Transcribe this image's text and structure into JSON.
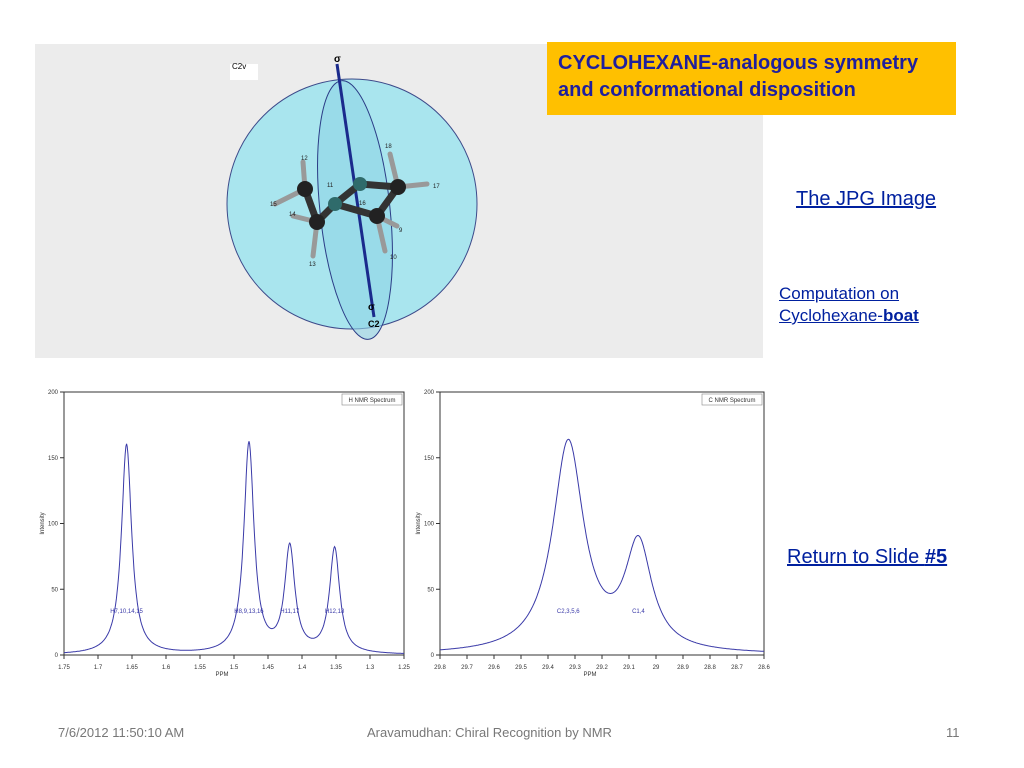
{
  "slide": {
    "title_line1": "CYCLOHEXANE-analogous symmetry",
    "title_line2": "and conformational disposition",
    "jpg_link": "The JPG Image",
    "comp_link_line1": "Computation on",
    "comp_link_line2_prefix": "Cyclohexane-",
    "comp_link_line2_bold": "boat",
    "return_prefix": "Return to Slide ",
    "return_bold": "#5"
  },
  "molecule": {
    "group_label": "C2v",
    "sigma_top": "σ",
    "sigma_bottom": "σ",
    "c2_label": "C2",
    "atom_labels": [
      "12",
      "11",
      "15",
      "14",
      "13",
      "18",
      "17",
      "16",
      "9",
      "10"
    ]
  },
  "footer": {
    "date": "7/6/2012 11:50:10 AM",
    "center": "Aravamudhan: Chiral Recognition by NMR",
    "page": "11"
  },
  "chart_data": [
    {
      "type": "line",
      "title": "H NMR Spectrum",
      "xlabel": "PPM",
      "ylabel": "Intensity",
      "xlim": [
        1.75,
        1.25
      ],
      "ylim": [
        0,
        200
      ],
      "x_ticks": [
        "1.75",
        "1.7",
        "1.65",
        "1.6",
        "1.55",
        "1.5",
        "1.45",
        "1.4",
        "1.35",
        "1.3",
        "1.25"
      ],
      "y_ticks": [
        "0",
        "50",
        "100",
        "150",
        "200"
      ],
      "peaks": [
        {
          "ppm": 1.658,
          "height": 160,
          "label": "H7,10,14,15"
        },
        {
          "ppm": 1.478,
          "height": 160,
          "label": "H8,9,13,16"
        },
        {
          "ppm": 1.418,
          "height": 80,
          "label": "H11,17"
        },
        {
          "ppm": 1.352,
          "height": 80,
          "label": "H12,18"
        }
      ]
    },
    {
      "type": "line",
      "title": "C NMR Spectrum",
      "xlabel": "PPM",
      "ylabel": "Intensity",
      "xlim": [
        29.8,
        28.6
      ],
      "ylim": [
        0,
        200
      ],
      "x_ticks": [
        "29.8",
        "29.7",
        "29.6",
        "29.5",
        "29.4",
        "29.3",
        "29.2",
        "29.1",
        "29",
        "28.9",
        "28.8",
        "28.7",
        "28.6"
      ],
      "y_ticks": [
        "0",
        "50",
        "100",
        "150",
        "200"
      ],
      "peaks": [
        {
          "ppm": 29.325,
          "height": 160,
          "label": "C2,3,5,6"
        },
        {
          "ppm": 29.065,
          "height": 80,
          "label": "C1,4"
        }
      ]
    }
  ]
}
